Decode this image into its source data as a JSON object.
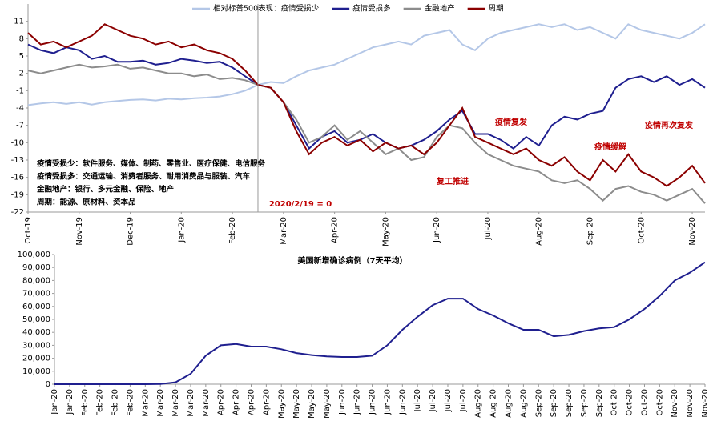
{
  "chart_data": [
    {
      "type": "line",
      "categories": [
        "Oct-19",
        null,
        null,
        null,
        "Nov-19",
        null,
        null,
        null,
        "Dec-19",
        null,
        null,
        null,
        "Jan-20",
        null,
        null,
        null,
        "Feb-20",
        null,
        null,
        null,
        "Mar-20",
        null,
        null,
        null,
        "Apr-20",
        null,
        null,
        null,
        "May-20",
        null,
        null,
        null,
        "Jun-20",
        null,
        null,
        null,
        "Jul-20",
        null,
        null,
        null,
        "Aug-20",
        null,
        null,
        null,
        "Sep-20",
        null,
        null,
        null,
        "Oct-20",
        null,
        null,
        null,
        "Nov-20",
        null
      ],
      "ylim": [
        -22,
        14
      ],
      "yticks": [
        11,
        8,
        5,
        2,
        -1,
        -4,
        -7,
        -10,
        -13,
        -16,
        -19,
        -22
      ],
      "series": [
        {
          "name": "相对标普500表现：疫情受损少",
          "color": "#b4c7e7",
          "values": [
            -3.5,
            -3.2,
            -3.0,
            -3.3,
            -3.0,
            -3.4,
            -3.0,
            -2.8,
            -2.6,
            -2.5,
            -2.7,
            -2.4,
            -2.5,
            -2.3,
            -2.2,
            -2.0,
            -1.6,
            -1.0,
            0,
            0.5,
            0.3,
            1.5,
            2.5,
            3.0,
            3.5,
            4.5,
            5.5,
            6.5,
            7.0,
            7.5,
            7.0,
            8.5,
            9.0,
            9.5,
            7.0,
            6.0,
            8.0,
            9.0,
            9.5,
            10.0,
            10.5,
            10.0,
            10.5,
            9.5,
            10.0,
            9.0,
            8.0,
            10.5,
            9.5,
            9.0,
            8.5,
            8.0,
            9.0,
            10.5
          ]
        },
        {
          "name": "疫情受损多",
          "color": "#1f1f8f",
          "values": [
            7.0,
            6.0,
            5.5,
            6.5,
            6.0,
            4.5,
            5.0,
            4.0,
            4.0,
            4.2,
            3.5,
            3.8,
            4.5,
            4.2,
            3.8,
            4.0,
            3.0,
            1.5,
            0,
            -0.5,
            -3.0,
            -7.0,
            -11.0,
            -9.0,
            -8.0,
            -10.0,
            -9.5,
            -8.5,
            -10.0,
            -11.0,
            -10.5,
            -9.5,
            -8.0,
            -6.0,
            -4.5,
            -8.5,
            -8.5,
            -9.5,
            -11.0,
            -9.0,
            -10.5,
            -7.0,
            -5.5,
            -6.0,
            -5.0,
            -4.5,
            -0.5,
            1.0,
            1.5,
            0.5,
            1.5,
            0.0,
            1.0,
            -0.5
          ]
        },
        {
          "name": "金融地产",
          "color": "#8c8c8c",
          "values": [
            2.5,
            2.0,
            2.5,
            3.0,
            3.5,
            3.0,
            3.2,
            3.5,
            2.8,
            3.0,
            2.5,
            2.0,
            2.0,
            1.5,
            1.8,
            1.0,
            1.2,
            0.8,
            0,
            -0.5,
            -3.0,
            -6.0,
            -10.0,
            -9.0,
            -7.0,
            -9.5,
            -8.0,
            -10.0,
            -12.0,
            -11.0,
            -13.0,
            -12.5,
            -9.0,
            -7.0,
            -7.5,
            -10.0,
            -12.0,
            -13.0,
            -14.0,
            -14.5,
            -15.0,
            -16.5,
            -17.0,
            -16.5,
            -18.0,
            -20.0,
            -18.0,
            -17.5,
            -18.5,
            -19.0,
            -20.0,
            -19.0,
            -18.0,
            -20.5
          ]
        },
        {
          "name": "周期",
          "color": "#8b0000",
          "values": [
            9.0,
            7.0,
            7.5,
            6.5,
            7.5,
            8.5,
            10.5,
            9.5,
            8.5,
            8.0,
            7.0,
            7.5,
            6.5,
            7.0,
            6.0,
            5.5,
            4.5,
            2.5,
            0,
            -0.5,
            -3.0,
            -8.0,
            -12.0,
            -10.0,
            -9.0,
            -10.5,
            -9.5,
            -11.5,
            -10.0,
            -11.0,
            -10.5,
            -12.0,
            -10.0,
            -7.0,
            -4.0,
            -9.0,
            -10.0,
            -11.0,
            -12.0,
            -11.0,
            -13.0,
            -14.0,
            -12.5,
            -15.0,
            -16.5,
            -13.0,
            -15.0,
            -12.0,
            -15.0,
            -16.0,
            -17.5,
            -16.0,
            -14.0,
            -17.0
          ]
        }
      ],
      "annotations": [
        "疫情复发",
        "疫情再次复发",
        "疫情缓解",
        "复工推进",
        "2020/2/19 = 0"
      ],
      "notes": [
        "疫情受损少：软件服务、媒体、制药、零售业、医疗保健、电信服务",
        "疫情受损多：交通运输、消费者服务、耐用消费品与服装、汽车",
        "金融地产：银行、多元金融、保险、地产",
        "周期：能源、原材料、资本品"
      ]
    },
    {
      "type": "line",
      "title": "美国新增确诊病例（7天平均）",
      "categories": [
        "Jan-20",
        "Jan-20",
        "Feb-20",
        "Feb-20",
        "Feb-20",
        "Feb-20",
        "Mar-20",
        "Mar-20",
        "Mar-20",
        "Mar-20",
        "Mar-20",
        "Apr-20",
        "Apr-20",
        "Apr-20",
        "Apr-20",
        "May-20",
        "May-20",
        "May-20",
        "May-20",
        "Jun-20",
        "Jun-20",
        "Jun-20",
        "Jun-20",
        "Jun-20",
        "Jul-20",
        "Jul-20",
        "Jul-20",
        "Jul-20",
        "Aug-20",
        "Aug-20",
        "Aug-20",
        "Aug-20",
        "Sep-20",
        "Sep-20",
        "Sep-20",
        "Sep-20",
        "Sep-20",
        "Oct-20",
        "Oct-20",
        "Oct-20",
        "Oct-20",
        "Nov-20",
        "Nov-20",
        "Nov-20"
      ],
      "ylim": [
        0,
        100000
      ],
      "yticks": [
        {
          "value": 0,
          "label": "0"
        },
        {
          "value": 10000,
          "label": "10,000"
        },
        {
          "value": 20000,
          "label": "20,000"
        },
        {
          "value": 30000,
          "label": "30,000"
        },
        {
          "value": 40000,
          "label": "40,000"
        },
        {
          "value": 50000,
          "label": "50,000"
        },
        {
          "value": 60000,
          "label": "60,000"
        },
        {
          "value": 70000,
          "label": "70,000"
        },
        {
          "value": 80000,
          "label": "80,000"
        },
        {
          "value": 90000,
          "label": "90,000"
        },
        {
          "value": 100000,
          "label": "100,000"
        }
      ],
      "series": [
        {
          "name": "美国新增确诊病例",
          "color": "#1f1f8f",
          "values": [
            0,
            0,
            0,
            0,
            0,
            10,
            20,
            200,
            1500,
            8000,
            22000,
            30000,
            31000,
            29000,
            29000,
            27000,
            24000,
            22500,
            21500,
            21000,
            21000,
            22000,
            30000,
            42000,
            52000,
            61000,
            66000,
            66000,
            58000,
            53000,
            47000,
            42000,
            42000,
            37000,
            38000,
            41000,
            43000,
            44000,
            50000,
            58000,
            68000,
            80000,
            86000,
            94000
          ]
        }
      ]
    }
  ]
}
